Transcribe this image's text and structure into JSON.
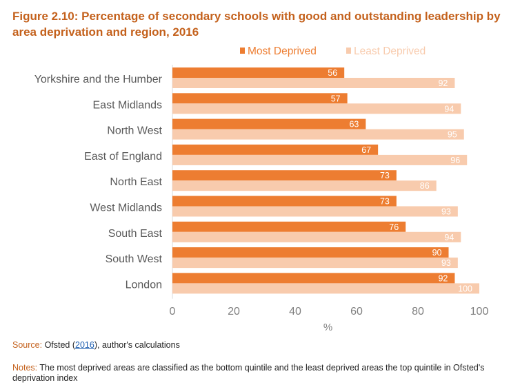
{
  "title": "Figure 2.10: Percentage of secondary schools with good and outstanding leadership by area deprivation and region, 2016",
  "chart_data": {
    "type": "bar",
    "orientation": "horizontal",
    "categories": [
      "Yorkshire and the Humber",
      "East Midlands",
      "North West",
      "East of England",
      "North East",
      "West Midlands",
      "South East",
      "South West",
      "London"
    ],
    "series": [
      {
        "name": "Most Deprived",
        "color": "#ed7d31",
        "values": [
          56,
          57,
          63,
          67,
          73,
          73,
          76,
          90,
          92
        ]
      },
      {
        "name": "Least Deprived",
        "color": "#f8cbad",
        "values": [
          92,
          94,
          95,
          96,
          86,
          93,
          94,
          93,
          100
        ]
      }
    ],
    "xlabel": "%",
    "xlim": [
      0,
      100
    ],
    "xticks": [
      0,
      20,
      40,
      60,
      80,
      100
    ],
    "grid": false,
    "legend": "top-right",
    "data_labels": true
  },
  "source": {
    "label": "Source:",
    "text_before": " Ofsted (",
    "link": "2016",
    "text_after": "), author's calculations"
  },
  "notes": {
    "label": "Notes:",
    "text": " The most deprived areas are classified as the bottom quintile and the least deprived areas the top quintile in Ofsted's deprivation index"
  }
}
